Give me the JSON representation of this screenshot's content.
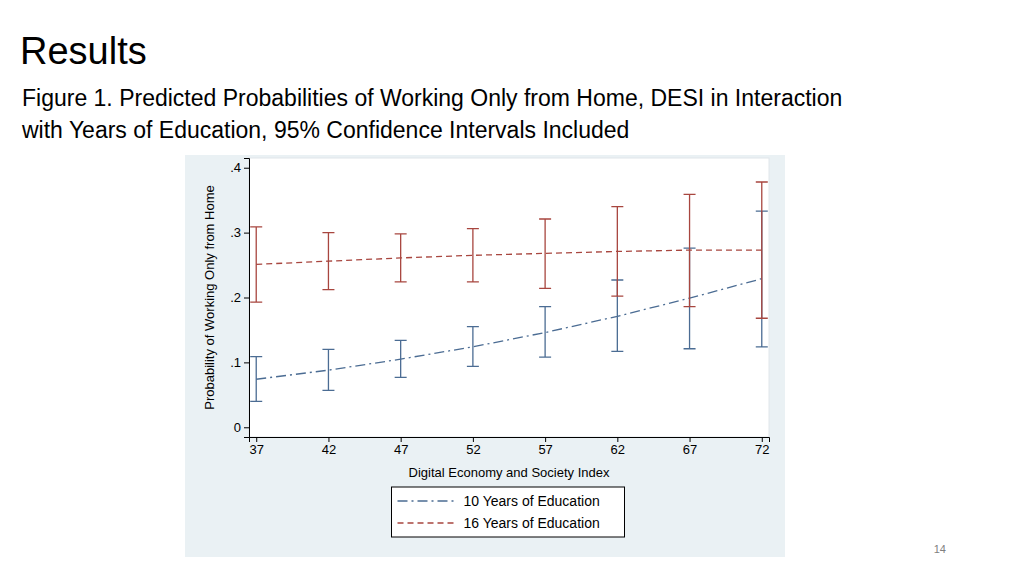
{
  "slide": {
    "heading": "Results",
    "page_number": 14
  },
  "chart_data": {
    "type": "line",
    "title": [
      "Figure 1. Predicted Probabilities of Working Only from Home, DESI in Interaction",
      "with Years of Education, 95% Confidence Intervals Included"
    ],
    "x_label": "Digital Economy and Society Index",
    "y_label": "Probability of Working Only from Home",
    "x": [
      37,
      42,
      47,
      52,
      57,
      62,
      67,
      72
    ],
    "series": [
      {
        "name": "10 Years of Education",
        "color": "#4b6c93",
        "line_style": "dash_dot",
        "values": [
          0.074,
          0.088,
          0.105,
          0.124,
          0.146,
          0.171,
          0.199,
          0.229
        ],
        "ci_lower": [
          0.04,
          0.057,
          0.077,
          0.094,
          0.108,
          0.117,
          0.121,
          0.124
        ],
        "ci_upper": [
          0.109,
          0.12,
          0.134,
          0.155,
          0.186,
          0.227,
          0.276,
          0.333
        ]
      },
      {
        "name": "16 Years of Education",
        "color": "#a8463f",
        "line_style": "dash",
        "values": [
          0.251,
          0.256,
          0.261,
          0.265,
          0.268,
          0.271,
          0.273,
          0.273
        ],
        "ci_lower": [
          0.193,
          0.212,
          0.224,
          0.224,
          0.214,
          0.202,
          0.186,
          0.168
        ],
        "ci_upper": [
          0.309,
          0.3,
          0.298,
          0.306,
          0.321,
          0.34,
          0.359,
          0.378
        ]
      }
    ],
    "xlim": [
      36.5,
      72.5
    ],
    "xticks": [
      37,
      42,
      47,
      52,
      57,
      62,
      67,
      72
    ],
    "ylim": [
      -0.015,
      0.415
    ],
    "yticks": [
      0,
      {
        "value": 0.1,
        "label": ".1"
      },
      {
        "value": 0.2,
        "label": ".2"
      },
      {
        "value": 0.3,
        "label": ".3"
      },
      {
        "value": 0.4,
        "label": ".4"
      }
    ],
    "grid": false,
    "legend": "bottom"
  }
}
